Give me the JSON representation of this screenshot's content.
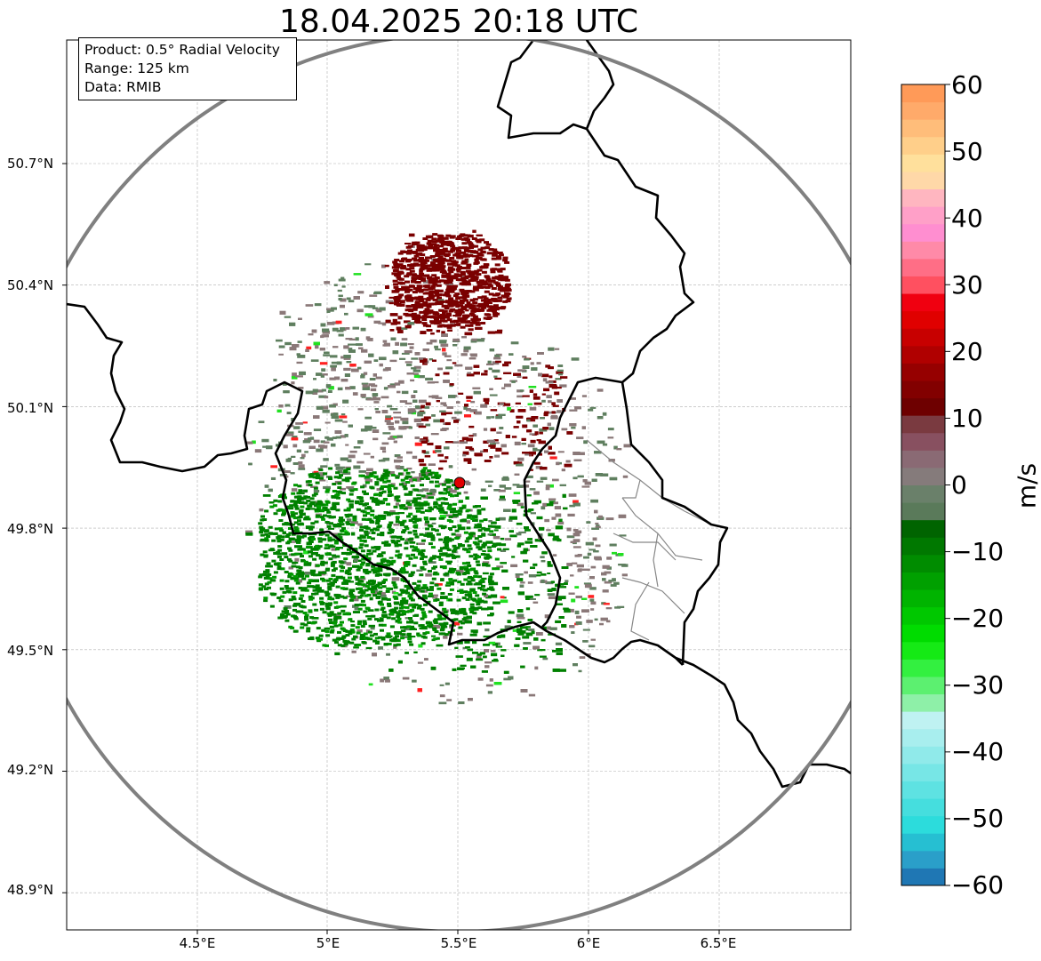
{
  "title": "18.04.2025 20:18 UTC",
  "info": {
    "product": "Product: 0.5° Radial Velocity",
    "range": "Range: 125 km",
    "source": "Data: RMIB"
  },
  "axes": {
    "lat_labels": [
      "50.7°N",
      "50.4°N",
      "50.1°N",
      "49.8°N",
      "49.5°N",
      "49.2°N",
      "48.9°N"
    ],
    "lat_values": [
      50.7,
      50.4,
      50.1,
      49.8,
      49.5,
      49.2,
      48.9
    ],
    "lon_labels": [
      "4.5°E",
      "5°E",
      "5.5°E",
      "6°E",
      "6.5°E"
    ],
    "lon_values": [
      4.5,
      5.0,
      5.5,
      6.0,
      6.5
    ],
    "lon_range": [
      4.0,
      7.0
    ],
    "lat_range": [
      48.8,
      51.0
    ]
  },
  "radar": {
    "site_lon": 5.505,
    "site_lat": 49.914,
    "range_km": 125,
    "site_color": "#e00000"
  },
  "colorbar": {
    "label": "m/s",
    "ticks": [
      "60",
      "50",
      "40",
      "30",
      "20",
      "10",
      "0",
      "−10",
      "−20",
      "−30",
      "−40",
      "−50",
      "−60"
    ],
    "tick_values": [
      60,
      50,
      40,
      30,
      20,
      10,
      0,
      -10,
      -20,
      -30,
      -40,
      -50,
      -60
    ],
    "range": [
      -60,
      60
    ],
    "colors": [
      "#1f77b4",
      "#2a9fc9",
      "#26bfd2",
      "#2cdcdc",
      "#45dede",
      "#5ee2e2",
      "#77e6e6",
      "#90eaea",
      "#a8eeee",
      "#bff2f2",
      "#8ef0a8",
      "#5cf070",
      "#33f040",
      "#15ea15",
      "#00dc00",
      "#00c800",
      "#00b400",
      "#00a000",
      "#008c00",
      "#007800",
      "#006400",
      "#5a7a5a",
      "#6a806a",
      "#857b7b",
      "#8a6a74",
      "#885060",
      "#7a3a40",
      "#6e0000",
      "#820000",
      "#960000",
      "#b00000",
      "#c80000",
      "#e00000",
      "#f00010",
      "#ff5060",
      "#ff6e86",
      "#ff8aa8",
      "#ff8ed0",
      "#ffa0c8",
      "#ffb6c0",
      "#ffd8a8",
      "#ffe09c",
      "#ffcf8a",
      "#ffbd7a",
      "#ffaa6a",
      "#ff9a58"
    ]
  },
  "colors": {
    "ring": "#808080",
    "border": "#000000",
    "admin": "#888888",
    "grid": "#b0b0b0",
    "inbound": "#008000",
    "outbound": "#7a0000",
    "near_zero_pos": "#8a7878",
    "near_zero_neg": "#5f7f5f"
  }
}
